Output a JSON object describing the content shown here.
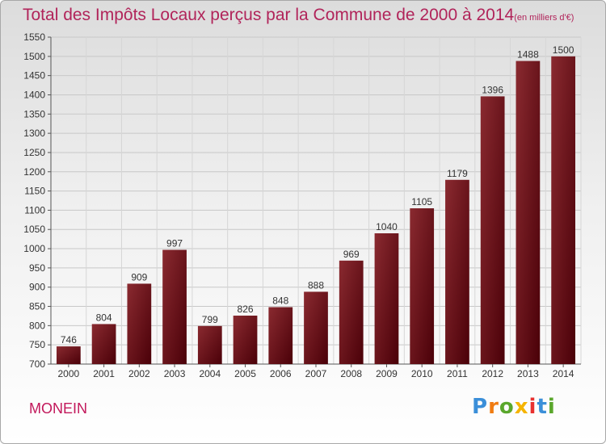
{
  "title": "Total des Impôts Locaux perçus par la Commune de 2000 à 2014",
  "unit_note": "(en milliers d'€)",
  "commune": "MONEIN",
  "logo": {
    "text": "Proxiti",
    "letters": [
      {
        "ch": "P",
        "color": "#3b8fd9"
      },
      {
        "ch": "r",
        "color": "#f07c12"
      },
      {
        "ch": "o",
        "color": "#5aa72c"
      },
      {
        "ch": "x",
        "color": "#f5b400"
      },
      {
        "ch": "i",
        "color": "#e8312f"
      },
      {
        "ch": "t",
        "color": "#3b8fd9"
      },
      {
        "ch": "i",
        "color": "#5aa72c"
      }
    ]
  },
  "chart_data": {
    "type": "bar",
    "categories": [
      "2000",
      "2001",
      "2002",
      "2003",
      "2004",
      "2005",
      "2006",
      "2007",
      "2008",
      "2009",
      "2010",
      "2011",
      "2012",
      "2013",
      "2014"
    ],
    "values": [
      746,
      804,
      909,
      997,
      799,
      826,
      848,
      888,
      969,
      1040,
      1105,
      1179,
      1396,
      1488,
      1500
    ],
    "title": "Total des Impôts Locaux perçus par la Commune de 2000 à 2014",
    "xlabel": "",
    "ylabel": "",
    "ylim": [
      700,
      1550
    ],
    "yticks": [
      700,
      750,
      800,
      850,
      900,
      950,
      1000,
      1050,
      1100,
      1150,
      1200,
      1250,
      1300,
      1350,
      1400,
      1450,
      1500,
      1550
    ],
    "grid": true,
    "bar_color": "#7a1a1f"
  }
}
